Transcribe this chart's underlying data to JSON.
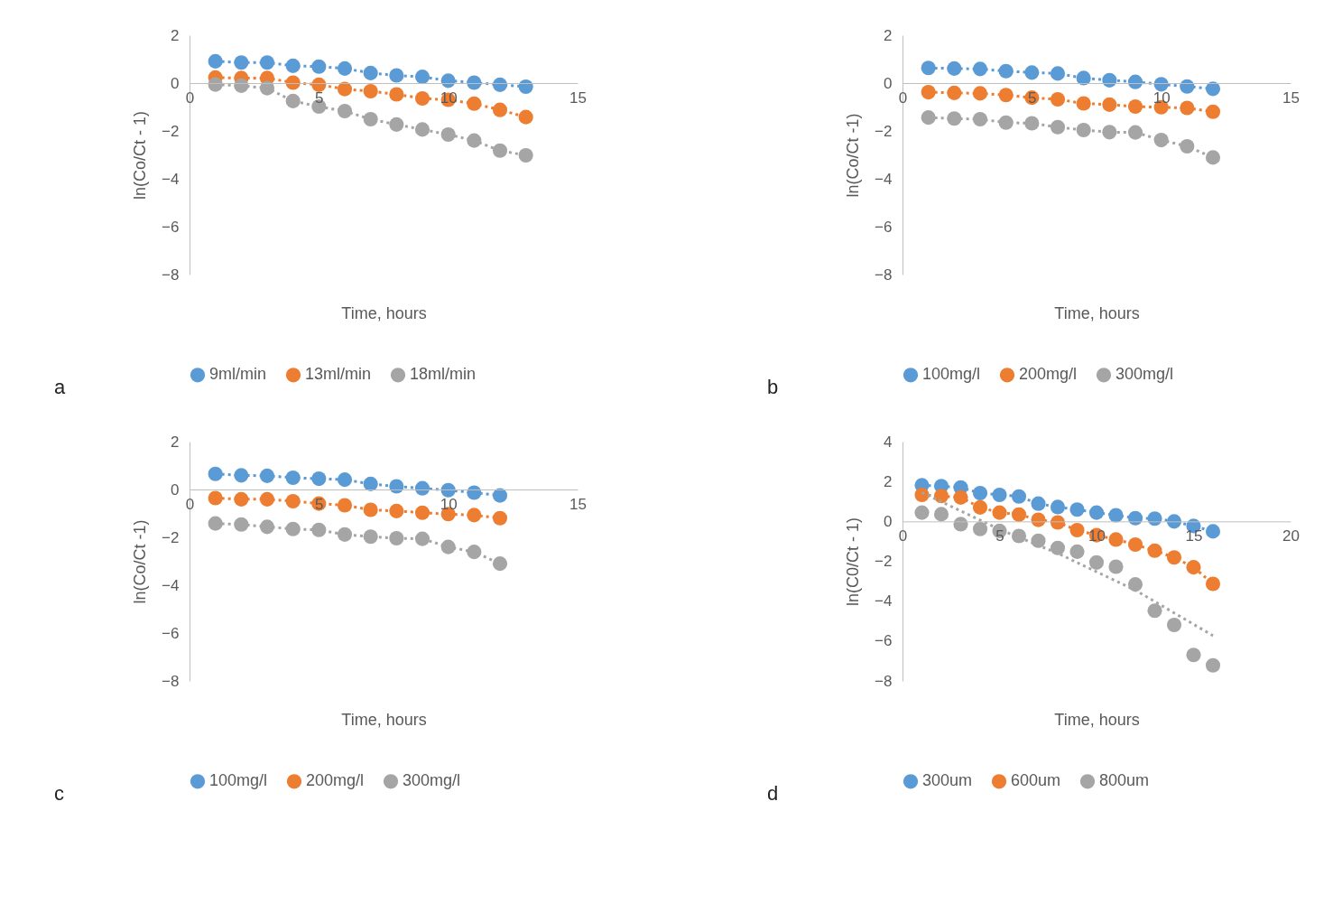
{
  "chart_data": [
    {
      "type": "line",
      "ylabel": "ln(Co/Ct - 1)",
      "xlabel": "Time, hours",
      "annotations": [
        "a"
      ],
      "xlim": [
        0,
        15
      ],
      "xticks": [
        0,
        5,
        10,
        15
      ],
      "ylim": [
        -8,
        2
      ],
      "yticks": [
        -8,
        -6,
        -4,
        -2,
        0,
        2
      ],
      "grid": false,
      "legend": "bottom",
      "marker": "circle",
      "line_style": "dotted",
      "x": [
        1,
        2,
        3,
        4,
        5,
        6,
        7,
        8,
        9,
        10,
        11,
        12,
        13
      ],
      "series": [
        {
          "name": "9ml/min",
          "color": "#5b9bd5",
          "values": [
            0.91,
            0.86,
            0.86,
            0.72,
            0.69,
            0.61,
            0.42,
            0.32,
            0.26,
            0.1,
            0.02,
            -0.07,
            -0.15
          ]
        },
        {
          "name": "13ml/min",
          "color": "#ed7d31",
          "values": [
            0.23,
            0.21,
            0.21,
            0.02,
            -0.07,
            -0.25,
            -0.34,
            -0.47,
            -0.64,
            -0.7,
            -0.86,
            -1.12,
            -1.42
          ]
        },
        {
          "name": "18ml/min",
          "color": "#a5a5a5",
          "values": [
            -0.06,
            -0.11,
            -0.21,
            -0.75,
            -0.98,
            -1.17,
            -1.51,
            -1.73,
            -1.94,
            -2.15,
            -2.4,
            -2.82,
            -3.02
          ]
        }
      ]
    },
    {
      "type": "line",
      "ylabel": "ln(Co/Ct -1)",
      "xlabel": "Time, hours",
      "annotations": [
        "b"
      ],
      "xlim": [
        0,
        15
      ],
      "xticks": [
        0,
        5,
        10,
        15
      ],
      "ylim": [
        -8,
        2
      ],
      "yticks": [
        -8,
        -6,
        -4,
        -2,
        0,
        2
      ],
      "grid": false,
      "legend": "bottom",
      "marker": "circle",
      "line_style": "dotted",
      "x": [
        1,
        2,
        3,
        4,
        5,
        6,
        7,
        8,
        9,
        10,
        11,
        12
      ],
      "series": [
        {
          "name": "100mg/l",
          "color": "#5b9bd5",
          "values": [
            0.63,
            0.61,
            0.59,
            0.5,
            0.44,
            0.4,
            0.21,
            0.12,
            0.05,
            -0.05,
            -0.14,
            -0.24
          ]
        },
        {
          "name": "200mg/l",
          "color": "#ed7d31",
          "values": [
            -0.38,
            -0.41,
            -0.43,
            -0.5,
            -0.61,
            -0.68,
            -0.85,
            -0.9,
            -0.98,
            -1.01,
            -1.04,
            -1.2
          ]
        },
        {
          "name": "300mg/l",
          "color": "#a5a5a5",
          "values": [
            -1.44,
            -1.48,
            -1.51,
            -1.65,
            -1.68,
            -1.84,
            -1.96,
            -2.05,
            -2.06,
            -2.38,
            -2.64,
            -3.11
          ]
        }
      ]
    },
    {
      "type": "line",
      "ylabel": "ln(Co/Ct -1)",
      "xlabel": "Time, hours",
      "annotations": [
        "c"
      ],
      "xlim": [
        0,
        15
      ],
      "xticks": [
        0,
        5,
        10,
        15
      ],
      "ylim": [
        -8,
        2
      ],
      "yticks": [
        -8,
        -6,
        -4,
        -2,
        0,
        2
      ],
      "grid": false,
      "legend": "bottom",
      "marker": "circle",
      "line_style": "dotted",
      "x": [
        1,
        2,
        3,
        4,
        5,
        6,
        7,
        8,
        9,
        10,
        11,
        12
      ],
      "series": [
        {
          "name": "100mg/l",
          "color": "#5b9bd5",
          "values": [
            0.65,
            0.59,
            0.57,
            0.49,
            0.45,
            0.41,
            0.23,
            0.13,
            0.05,
            -0.03,
            -0.13,
            -0.25
          ]
        },
        {
          "name": "200mg/l",
          "color": "#ed7d31",
          "values": [
            -0.36,
            -0.41,
            -0.41,
            -0.49,
            -0.59,
            -0.66,
            -0.85,
            -0.9,
            -0.97,
            -1.03,
            -1.07,
            -1.2
          ]
        },
        {
          "name": "300mg/l",
          "color": "#a5a5a5",
          "values": [
            -1.42,
            -1.46,
            -1.56,
            -1.65,
            -1.69,
            -1.88,
            -1.97,
            -2.04,
            -2.06,
            -2.4,
            -2.61,
            -3.1
          ]
        }
      ]
    },
    {
      "type": "line",
      "ylabel": "ln(C0/Ct - 1)",
      "xlabel": "Time, hours",
      "annotations": [
        "d"
      ],
      "xlim": [
        0,
        20
      ],
      "xticks": [
        0,
        5,
        10,
        15,
        20
      ],
      "ylim": [
        -8,
        4
      ],
      "yticks": [
        -8,
        -6,
        -4,
        -2,
        0,
        2,
        4
      ],
      "grid": false,
      "legend": "bottom",
      "marker": "circle",
      "line_style": "dotted",
      "x": [
        1,
        2,
        3,
        4,
        5,
        6,
        7,
        8,
        9,
        10,
        11,
        12,
        13,
        14,
        15,
        16
      ],
      "series": [
        {
          "name": "300um",
          "color": "#5b9bd5",
          "values": [
            1.81,
            1.77,
            1.7,
            1.42,
            1.33,
            1.25,
            0.89,
            0.72,
            0.59,
            0.44,
            0.31,
            0.16,
            0.14,
            0.0,
            -0.23,
            -0.5
          ]
        },
        {
          "name": "600um",
          "color": "#ed7d31",
          "values": [
            1.33,
            1.27,
            1.2,
            0.7,
            0.44,
            0.34,
            0.08,
            -0.05,
            -0.44,
            -0.69,
            -0.91,
            -1.16,
            -1.47,
            -1.81,
            -2.3,
            -3.13
          ]
        },
        {
          "name": "800um",
          "type": "scatter",
          "color": "#a5a5a5",
          "values": [
            0.44,
            0.36,
            -0.14,
            -0.38,
            -0.48,
            -0.73,
            -0.97,
            -1.33,
            -1.52,
            -2.06,
            -2.27,
            -3.16,
            -4.48,
            -5.19,
            -6.7,
            -7.22
          ]
        },
        {
          "type": "line",
          "marker": "none",
          "color": "#a5a5a5",
          "x": [
            1,
            5,
            8,
            12,
            16
          ],
          "values": [
            1.45,
            -0.4,
            -1.6,
            -3.45,
            -5.73
          ]
        }
      ]
    }
  ]
}
